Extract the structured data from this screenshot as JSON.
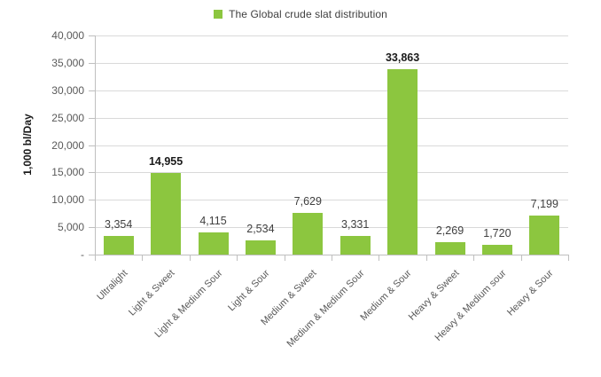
{
  "legend": {
    "label": "The Global crude slat distribution",
    "swatch_color": "#8CC63F"
  },
  "chart_data": {
    "type": "bar",
    "title": "The Global crude slat distribution",
    "categories": [
      "Ultralight",
      "Light & Sweet",
      "Light & Medium Sour",
      "Light & Sour",
      "Medium & Sweet",
      "Medium & Medium Sour",
      "Medium & Sour",
      "Heavy & Sweet",
      "Heavy & Medium sour",
      "Heavy & Sour"
    ],
    "values": [
      3354,
      14955,
      4115,
      2534,
      7629,
      3331,
      33863,
      2269,
      1720,
      7199
    ],
    "value_labels": [
      "3,354",
      "14,955",
      "4,115",
      "2,534",
      "7,629",
      "3,331",
      "33,863",
      "2,269",
      "1,720",
      "7,199"
    ],
    "bold_value_label_indices": [
      1,
      6
    ],
    "xlabel": "",
    "ylabel": "1,000 bl/Day",
    "ylim": [
      0,
      40000
    ],
    "y_tick_values": [
      40000,
      35000,
      30000,
      25000,
      20000,
      15000,
      10000,
      5000,
      0
    ],
    "y_tick_labels": [
      "40,000",
      "35,000",
      "30,000",
      "25,000",
      "20,000",
      "15,000",
      "10,000",
      "5,000",
      "-"
    ],
    "bar_color": "#8CC63F",
    "grid": true,
    "gridline_color": "#d9d9d9",
    "axis_color": "#bfbfbf",
    "legend_position": "top-center"
  }
}
